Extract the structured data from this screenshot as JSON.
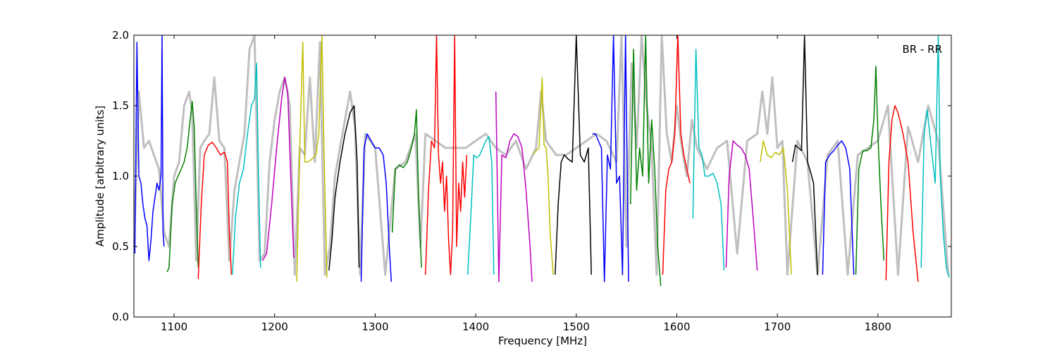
{
  "chart_data": {
    "type": "line",
    "xlabel": "Frequency [MHz]",
    "ylabel": "Amplitude [arbitrary units]",
    "annotation": "BR - RR",
    "xlim": [
      1060,
      1873
    ],
    "ylim": [
      0.0,
      2.0
    ],
    "xticks": [
      1100,
      1200,
      1300,
      1400,
      1500,
      1600,
      1700,
      1800
    ],
    "xtick_labels": [
      "1100",
      "1200",
      "1300",
      "1400",
      "1500",
      "1600",
      "1700",
      "1800"
    ],
    "yticks": [
      0.0,
      0.5,
      1.0,
      1.5,
      2.0
    ],
    "ytick_labels": [
      "0.0",
      "0.5",
      "1.0",
      "1.5",
      "2.0"
    ],
    "grid": false,
    "background_series": {
      "color": "#bfbfbf",
      "x": [
        1060,
        1065,
        1070,
        1075,
        1080,
        1085,
        1090,
        1095,
        1100,
        1105,
        1110,
        1115,
        1118,
        1122,
        1126,
        1130,
        1135,
        1140,
        1145,
        1150,
        1155,
        1160,
        1165,
        1170,
        1175,
        1180,
        1185,
        1190,
        1195,
        1200,
        1205,
        1210,
        1215,
        1220,
        1225,
        1230,
        1235,
        1240,
        1245,
        1250,
        1255,
        1260,
        1265,
        1270,
        1275,
        1280,
        1285,
        1290,
        1295,
        1300,
        1310,
        1320,
        1330,
        1340,
        1345,
        1350,
        1360,
        1370,
        1380,
        1390,
        1400,
        1410,
        1420,
        1430,
        1440,
        1450,
        1460,
        1465,
        1470,
        1480,
        1490,
        1500,
        1510,
        1520,
        1530,
        1540,
        1545,
        1550,
        1555,
        1560,
        1565,
        1570,
        1575,
        1580,
        1585,
        1590,
        1595,
        1600,
        1605,
        1610,
        1615,
        1620,
        1630,
        1640,
        1650,
        1660,
        1670,
        1680,
        1685,
        1690,
        1695,
        1700,
        1705,
        1710,
        1720,
        1730,
        1740,
        1750,
        1760,
        1770,
        1780,
        1790,
        1800,
        1810,
        1820,
        1830,
        1840,
        1850,
        1860,
        1870
      ],
      "y": [
        0.5,
        1.6,
        1.2,
        1.25,
        1.15,
        1.05,
        0.6,
        0.5,
        1.0,
        1.1,
        1.5,
        1.6,
        1.45,
        0.4,
        1.2,
        1.25,
        1.3,
        1.7,
        1.25,
        1.2,
        0.4,
        0.9,
        1.1,
        1.3,
        1.9,
        2.0,
        0.4,
        0.45,
        1.1,
        1.4,
        1.6,
        1.7,
        1.5,
        0.3,
        1.2,
        1.15,
        1.7,
        1.1,
        1.95,
        0.3,
        0.5,
        1.0,
        1.2,
        1.4,
        1.6,
        1.35,
        0.3,
        1.3,
        1.25,
        1.2,
        0.3,
        1.05,
        1.1,
        1.3,
        0.5,
        1.3,
        1.25,
        1.2,
        1.2,
        1.2,
        1.25,
        1.3,
        1.2,
        1.15,
        1.25,
        1.05,
        1.2,
        1.6,
        1.25,
        1.15,
        1.15,
        1.2,
        1.25,
        1.3,
        1.25,
        1.1,
        2.0,
        0.5,
        1.8,
        1.2,
        2.0,
        1.5,
        1.2,
        0.3,
        2.0,
        1.3,
        1.1,
        1.5,
        1.2,
        1.0,
        1.4,
        1.2,
        1.05,
        1.2,
        1.25,
        0.45,
        1.25,
        1.3,
        1.6,
        1.3,
        1.7,
        1.2,
        1.25,
        0.3,
        1.25,
        1.1,
        0.3,
        1.15,
        1.25,
        0.3,
        1.15,
        1.2,
        1.25,
        1.5,
        0.3,
        1.35,
        1.1,
        1.5,
        1.25,
        0.3
      ]
    },
    "series": [
      {
        "color": "#0000ff",
        "x": [
          1061,
          1063,
          1065,
          1067,
          1069,
          1071,
          1073,
          1075,
          1077,
          1079,
          1081,
          1083,
          1085,
          1087,
          1088,
          1089,
          1090
        ],
        "y": [
          0.45,
          1.95,
          1.0,
          0.95,
          0.8,
          0.7,
          0.65,
          0.4,
          0.55,
          0.75,
          0.85,
          0.95,
          0.9,
          1.0,
          2.0,
          0.6,
          0.5
        ]
      },
      {
        "color": "#008000",
        "x": [
          1093,
          1095,
          1098,
          1101,
          1104,
          1107,
          1110,
          1113,
          1116,
          1118,
          1120,
          1122,
          1124
        ],
        "y": [
          0.32,
          0.35,
          0.8,
          0.95,
          1.0,
          1.05,
          1.1,
          1.2,
          1.4,
          1.53,
          1.35,
          0.8,
          0.35
        ]
      },
      {
        "color": "#ff0000",
        "x": [
          1124,
          1127,
          1130,
          1134,
          1138,
          1142,
          1146,
          1150,
          1153,
          1155,
          1157
        ],
        "y": [
          0.27,
          0.8,
          1.15,
          1.22,
          1.24,
          1.2,
          1.15,
          1.17,
          1.1,
          0.6,
          0.3
        ]
      },
      {
        "color": "#00bfbf",
        "x": [
          1158,
          1161,
          1165,
          1169,
          1173,
          1177,
          1180,
          1182,
          1184,
          1186
        ],
        "y": [
          0.3,
          0.7,
          0.95,
          1.05,
          1.3,
          1.5,
          1.55,
          1.8,
          1.0,
          0.35
        ]
      },
      {
        "color": "#bf00bf",
        "x": [
          1188,
          1192,
          1197,
          1202,
          1207,
          1210,
          1213,
          1216,
          1219
        ],
        "y": [
          0.4,
          0.45,
          0.8,
          1.2,
          1.55,
          1.7,
          1.6,
          1.0,
          0.42
        ]
      },
      {
        "color": "#bfbf00",
        "x": [
          1222,
          1225,
          1228,
          1230,
          1233,
          1237,
          1241,
          1244,
          1247,
          1249,
          1252
        ],
        "y": [
          0.25,
          1.2,
          1.95,
          1.1,
          1.1,
          1.12,
          1.15,
          1.3,
          2.0,
          1.2,
          0.28
        ]
      },
      {
        "color": "#000000",
        "x": [
          1254,
          1257,
          1260,
          1265,
          1270,
          1275,
          1279,
          1282,
          1284
        ],
        "y": [
          0.33,
          0.55,
          0.85,
          1.1,
          1.3,
          1.45,
          1.5,
          1.1,
          0.35
        ]
      },
      {
        "color": "#0000ff",
        "x": [
          1286,
          1289,
          1292,
          1296,
          1300,
          1304,
          1308,
          1311,
          1314,
          1316
        ],
        "y": [
          0.25,
          1.2,
          1.3,
          1.25,
          1.2,
          1.2,
          1.15,
          0.95,
          0.5,
          0.25
        ]
      },
      {
        "color": "#008000",
        "x": [
          1317,
          1320,
          1324,
          1328,
          1332,
          1336,
          1339,
          1341,
          1343,
          1346
        ],
        "y": [
          0.6,
          1.05,
          1.08,
          1.06,
          1.1,
          1.2,
          1.3,
          1.47,
          0.9,
          0.35
        ]
      },
      {
        "color": "#ff0000",
        "x": [
          1350,
          1353,
          1356,
          1359,
          1361,
          1363,
          1365,
          1367,
          1369,
          1371,
          1373,
          1375,
          1377,
          1379,
          1381,
          1383,
          1385,
          1387,
          1389,
          1391
        ],
        "y": [
          0.3,
          0.9,
          1.25,
          1.2,
          2.0,
          1.15,
          0.95,
          1.1,
          0.75,
          1.0,
          0.55,
          0.3,
          0.6,
          2.0,
          0.5,
          0.95,
          0.75,
          1.1,
          0.85,
          1.15
        ]
      },
      {
        "color": "#00bfbf",
        "x": [
          1392,
          1395,
          1398,
          1401,
          1404,
          1407,
          1410,
          1413,
          1416,
          1418
        ],
        "y": [
          0.3,
          0.7,
          1.15,
          1.13,
          1.15,
          1.2,
          1.25,
          1.28,
          1.1,
          0.3
        ]
      },
      {
        "color": "#bf00bf",
        "x": [
          1420,
          1423,
          1426,
          1430,
          1434,
          1438,
          1442,
          1446,
          1450,
          1454,
          1456
        ],
        "y": [
          1.6,
          0.25,
          1.15,
          1.13,
          1.25,
          1.3,
          1.28,
          1.2,
          0.9,
          0.5,
          0.25
        ]
      },
      {
        "color": "#bfbf00",
        "x": [
          1457,
          1460,
          1463,
          1466,
          1468,
          1470,
          1472,
          1474,
          1477
        ],
        "y": [
          1.15,
          1.18,
          1.2,
          1.7,
          1.22,
          1.2,
          1.0,
          0.6,
          0.3
        ]
      },
      {
        "color": "#000000",
        "x": [
          1479,
          1482,
          1485,
          1488,
          1492,
          1496,
          1500,
          1504,
          1508,
          1512,
          1515
        ],
        "y": [
          0.3,
          0.8,
          1.1,
          1.15,
          1.12,
          1.1,
          2.0,
          1.15,
          1.1,
          1.2,
          0.3
        ]
      },
      {
        "color": "#0000ff",
        "x": [
          1516,
          1519,
          1522,
          1525,
          1528,
          1531,
          1534,
          1537,
          1540,
          1543,
          1546,
          1549,
          1552
        ],
        "y": [
          1.3,
          1.3,
          1.25,
          1.2,
          0.25,
          1.15,
          1.05,
          2.0,
          0.95,
          1.0,
          0.3,
          2.0,
          0.25
        ]
      },
      {
        "color": "#008000",
        "x": [
          1554,
          1557,
          1560,
          1563,
          1566,
          1569,
          1572,
          1575,
          1578,
          1581,
          1584
        ],
        "y": [
          0.8,
          1.9,
          0.9,
          1.2,
          1.0,
          2.0,
          0.95,
          1.4,
          1.05,
          0.5,
          0.22
        ]
      },
      {
        "color": "#ff0000",
        "x": [
          1586,
          1589,
          1592,
          1595,
          1598,
          1601,
          1604,
          1607,
          1610,
          1613
        ],
        "y": [
          0.3,
          0.9,
          1.05,
          1.1,
          1.3,
          2.0,
          1.3,
          1.15,
          1.05,
          0.95
        ]
      },
      {
        "color": "#00bfbf",
        "x": [
          1616,
          1619,
          1622,
          1625,
          1628,
          1632,
          1636,
          1640,
          1644,
          1647
        ],
        "y": [
          0.7,
          1.9,
          1.2,
          1.15,
          1.0,
          1.0,
          1.02,
          0.95,
          0.8,
          0.33
        ]
      },
      {
        "color": "#bf00bf",
        "x": [
          1649,
          1652,
          1656,
          1660,
          1664,
          1668,
          1672,
          1676,
          1680
        ],
        "y": [
          0.35,
          1.0,
          1.25,
          1.22,
          1.2,
          1.15,
          1.05,
          0.7,
          0.33
        ]
      },
      {
        "color": "#bfbf00",
        "x": [
          1683,
          1686,
          1690,
          1694,
          1698,
          1702,
          1706,
          1710,
          1714
        ],
        "y": [
          1.1,
          1.25,
          1.15,
          1.13,
          1.17,
          1.15,
          1.2,
          0.9,
          0.3
        ]
      },
      {
        "color": "#000000",
        "x": [
          1715,
          1718,
          1721,
          1724,
          1727,
          1730,
          1733,
          1736,
          1740
        ],
        "y": [
          1.1,
          1.22,
          1.2,
          1.18,
          2.0,
          1.1,
          1.03,
          0.95,
          0.3
        ]
      },
      {
        "color": "#0000ff",
        "x": [
          1745,
          1748,
          1752,
          1756,
          1760,
          1764,
          1768,
          1772,
          1776
        ],
        "y": [
          0.3,
          1.1,
          1.15,
          1.18,
          1.22,
          1.25,
          1.2,
          1.05,
          0.3
        ]
      },
      {
        "color": "#008000",
        "x": [
          1778,
          1781,
          1785,
          1789,
          1793,
          1796,
          1798,
          1800,
          1803,
          1806
        ],
        "y": [
          0.3,
          1.05,
          1.18,
          1.18,
          1.2,
          1.4,
          1.78,
          1.3,
          0.8,
          0.4
        ]
      },
      {
        "color": "#ff0000",
        "x": [
          1808,
          1811,
          1814,
          1817,
          1820,
          1825,
          1830,
          1835,
          1840
        ],
        "y": [
          0.26,
          1.1,
          1.4,
          1.5,
          1.45,
          1.3,
          1.1,
          0.6,
          0.25
        ]
      },
      {
        "color": "#00bfbf",
        "x": [
          1843,
          1846,
          1849,
          1853,
          1857,
          1860,
          1862,
          1865,
          1868,
          1871
        ],
        "y": [
          0.35,
          1.3,
          1.47,
          1.2,
          0.95,
          2.0,
          1.0,
          0.6,
          0.35,
          0.28
        ]
      }
    ]
  }
}
